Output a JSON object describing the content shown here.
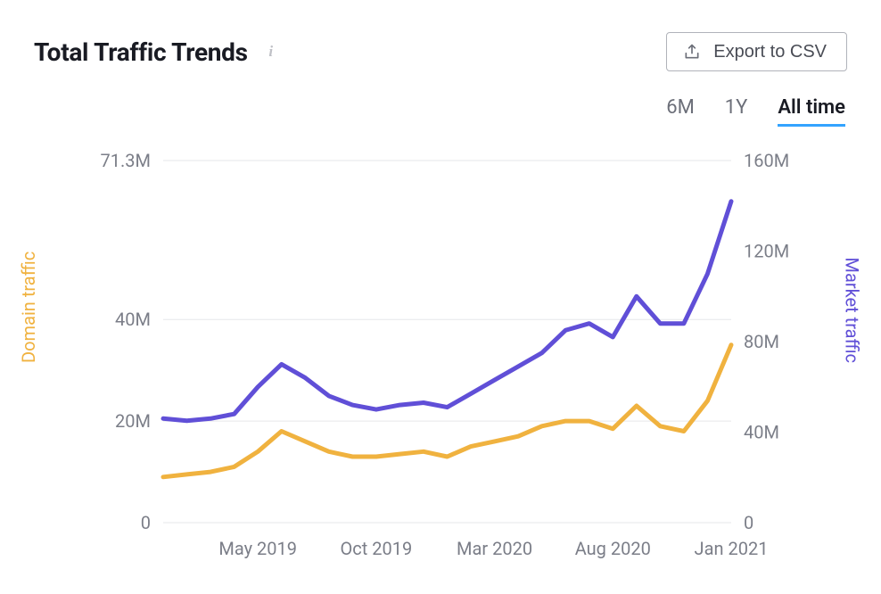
{
  "header": {
    "title": "Total Traffic Trends",
    "info_icon": "i",
    "export_label": "Export to CSV"
  },
  "ranges": {
    "items": [
      "6M",
      "1Y",
      "All time"
    ],
    "active_index": 2
  },
  "chart": {
    "type": "line",
    "background_color": "#ffffff",
    "grid_color": "#e6e7ea",
    "tick_color": "#7b7e88",
    "tick_fontsize": 20,
    "line_width": 5,
    "x": {
      "ticks": [
        "May 2019",
        "Oct 2019",
        "Mar 2020",
        "Aug 2020",
        "Jan 2021"
      ],
      "tick_index": [
        4,
        9,
        14,
        19,
        24
      ],
      "point_count": 25
    },
    "left_axis": {
      "label": "Domain traffic",
      "label_color": "#f0b23f",
      "ticks": [
        "0",
        "20M",
        "40M",
        "71.3M"
      ],
      "tick_values": [
        0,
        20,
        40,
        71.3
      ],
      "min": 0,
      "max": 71.3
    },
    "right_axis": {
      "label": "Market traffic",
      "label_color": "#604fd7",
      "ticks": [
        "0",
        "40M",
        "80M",
        "120M",
        "160M"
      ],
      "tick_values": [
        0,
        40,
        80,
        120,
        160
      ],
      "min": 0,
      "max": 160
    },
    "series": {
      "domain": {
        "color": "#f0b23f",
        "axis": "left",
        "values": [
          9,
          9.5,
          10,
          11,
          14,
          18,
          16,
          14,
          13,
          13,
          13.5,
          14,
          13,
          15,
          16,
          17,
          19,
          20,
          20,
          18.5,
          23,
          19,
          18,
          24,
          35
        ]
      },
      "market": {
        "color": "#604fd7",
        "axis": "right",
        "values": [
          46,
          45,
          46,
          48,
          60,
          70,
          64,
          56,
          52,
          50,
          52,
          53,
          51,
          57,
          63,
          69,
          75,
          85,
          88,
          82,
          100,
          88,
          88,
          110,
          142
        ]
      }
    }
  }
}
